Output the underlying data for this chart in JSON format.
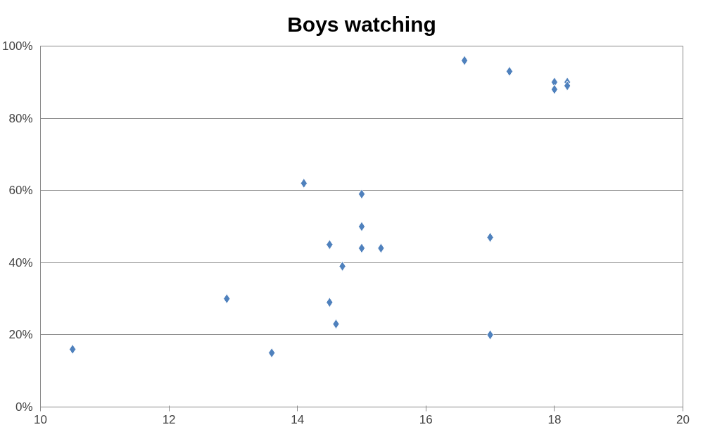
{
  "chart_data": {
    "type": "scatter",
    "title": "Boys watching",
    "x": [
      10.5,
      12.9,
      13.6,
      14.1,
      14.5,
      14.5,
      14.6,
      14.7,
      15.0,
      15.0,
      15.0,
      15.3,
      16.6,
      17.0,
      17.0,
      17.3,
      18.0,
      18.0,
      18.2,
      18.2
    ],
    "series": [
      {
        "color": "#4f81bd",
        "values": [
          16,
          30,
          15,
          62,
          45,
          29,
          23,
          39,
          59,
          50,
          44,
          44,
          96,
          47,
          20,
          93,
          90,
          88,
          90,
          89
        ]
      }
    ],
    "xlim": [
      10,
      20
    ],
    "xticks": [
      10,
      12,
      14,
      16,
      18,
      20
    ],
    "ylim": [
      0,
      100
    ],
    "yticks": [
      {
        "value": 0,
        "label": "0%"
      },
      {
        "value": 20,
        "label": "20%"
      },
      {
        "value": 40,
        "label": "40%"
      },
      {
        "value": 60,
        "label": "60%"
      },
      {
        "value": 80,
        "label": "80%"
      },
      {
        "value": 100,
        "label": "100%"
      }
    ],
    "grid": "y",
    "marker": "diamond"
  }
}
